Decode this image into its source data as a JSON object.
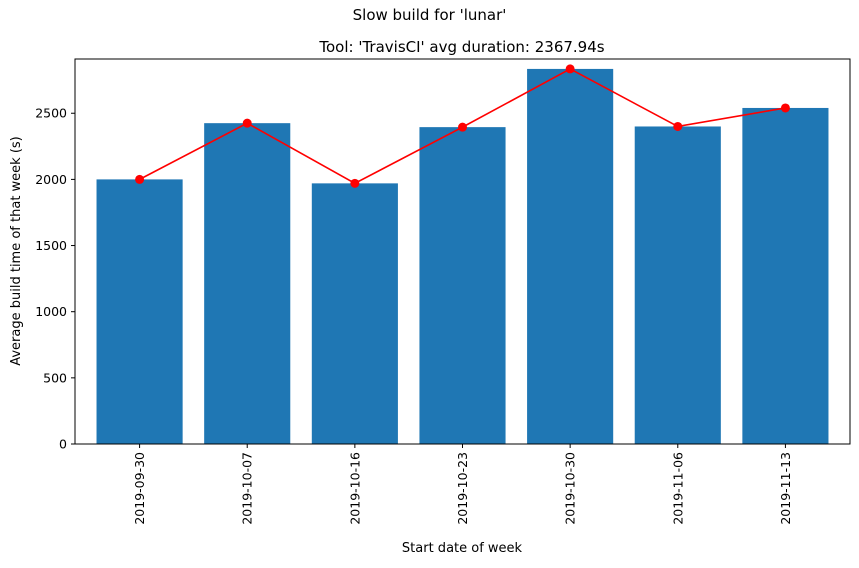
{
  "chart_data": {
    "type": "bar",
    "suptitle": "Slow build for 'lunar'",
    "title": "Tool: 'TravisCI' avg duration: 2367.94s",
    "xlabel": "Start date of week",
    "ylabel": "Average build time of that week (s)",
    "categories": [
      "2019-09-30",
      "2019-10-07",
      "2019-10-16",
      "2019-10-23",
      "2019-10-30",
      "2019-11-06",
      "2019-11-13"
    ],
    "series": [
      {
        "type": "bar",
        "values": [
          2000,
          2425,
          1970,
          2395,
          2835,
          2400,
          2540
        ],
        "color": "#1f77b4"
      },
      {
        "type": "line",
        "values": [
          2000,
          2425,
          1970,
          2395,
          2835,
          2400,
          2540
        ],
        "color": "#ff0000",
        "marker": "circle"
      }
    ],
    "ylim": [
      0,
      2910
    ],
    "yticks": [
      0,
      500,
      1000,
      1500,
      2000,
      2500
    ],
    "grid": false,
    "legend": "none"
  }
}
